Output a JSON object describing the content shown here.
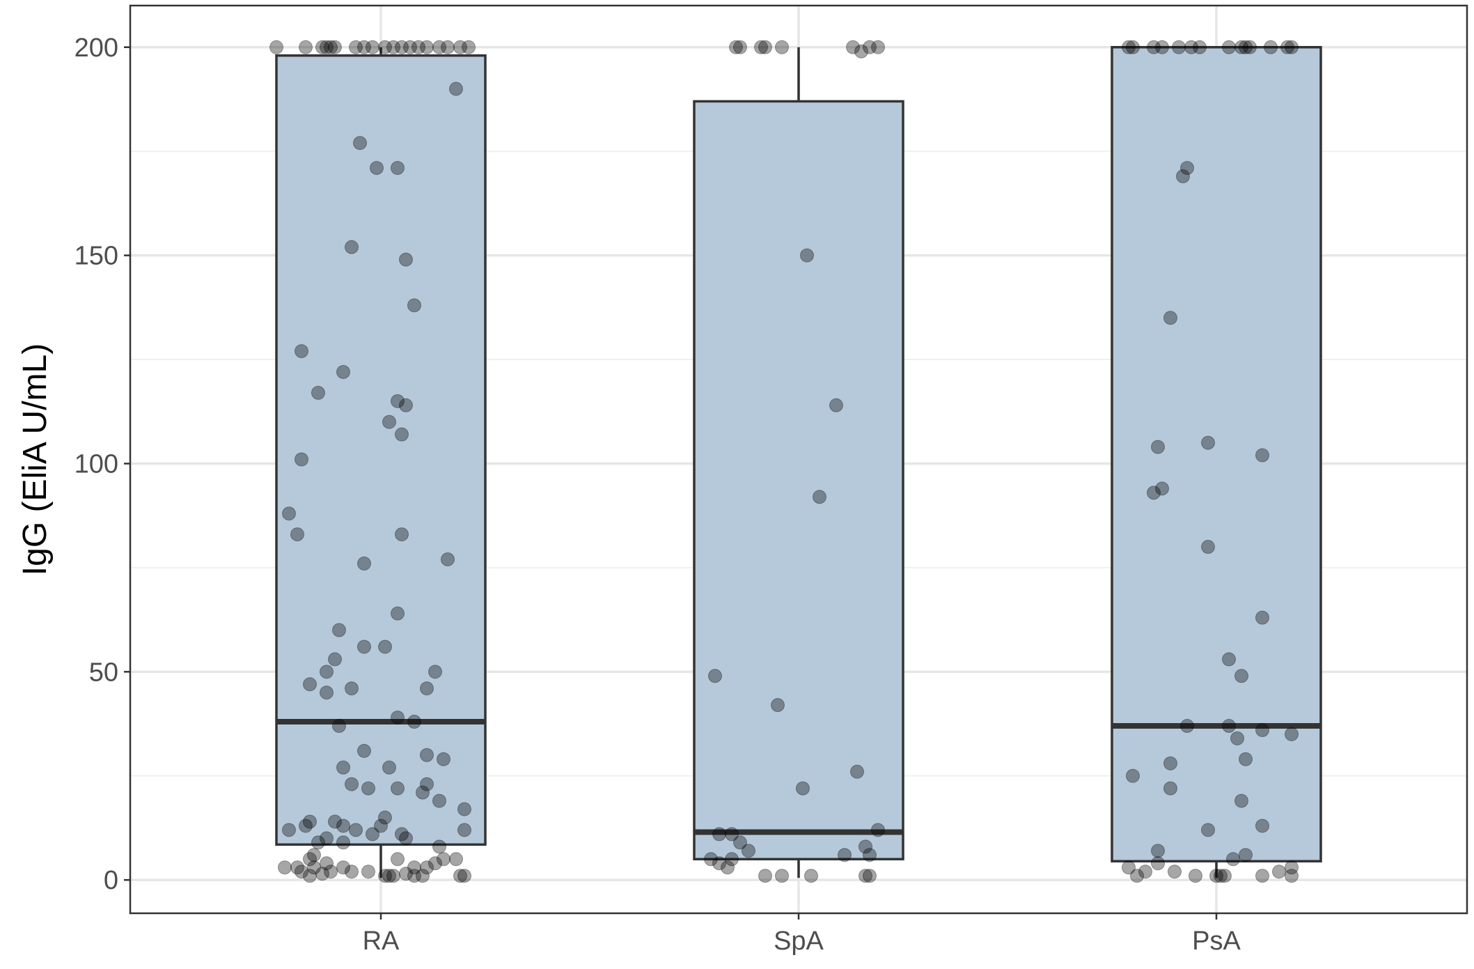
{
  "chart_data": {
    "type": "box",
    "ylabel": "IgG (EliA U/mL)",
    "ylim": [
      -8,
      210
    ],
    "y_ticks": [
      0,
      50,
      100,
      150,
      200
    ],
    "y_tick_labels": [
      "0",
      "50",
      "100",
      "150",
      "200"
    ],
    "categories": [
      "RA",
      "SpA",
      "PsA"
    ],
    "grid": true,
    "box_color": "#b6c9da",
    "boxes": [
      {
        "category": "RA",
        "lower_whisker": 0.5,
        "q1": 8.5,
        "median": 38,
        "q3": 198,
        "upper_whisker": 200
      },
      {
        "category": "SpA",
        "lower_whisker": 0.5,
        "q1": 5,
        "median": 11.5,
        "q3": 187,
        "upper_whisker": 200
      },
      {
        "category": "PsA",
        "lower_whisker": 0.5,
        "q1": 4.5,
        "median": 37,
        "q3": 200,
        "upper_whisker": 200
      }
    ],
    "points": [
      {
        "category": "RA",
        "values": [
          {
            "jitter": -0.25,
            "y": 200
          },
          {
            "jitter": -0.18,
            "y": 200
          },
          {
            "jitter": -0.14,
            "y": 200
          },
          {
            "jitter": -0.13,
            "y": 200
          },
          {
            "jitter": -0.12,
            "y": 200
          },
          {
            "jitter": -0.11,
            "y": 200
          },
          {
            "jitter": -0.06,
            "y": 200
          },
          {
            "jitter": -0.04,
            "y": 200
          },
          {
            "jitter": -0.02,
            "y": 200
          },
          {
            "jitter": 0.01,
            "y": 200
          },
          {
            "jitter": 0.03,
            "y": 200
          },
          {
            "jitter": 0.05,
            "y": 200
          },
          {
            "jitter": 0.07,
            "y": 200
          },
          {
            "jitter": 0.09,
            "y": 200
          },
          {
            "jitter": 0.11,
            "y": 200
          },
          {
            "jitter": 0.14,
            "y": 200
          },
          {
            "jitter": 0.16,
            "y": 200
          },
          {
            "jitter": 0.19,
            "y": 200
          },
          {
            "jitter": 0.21,
            "y": 200
          },
          {
            "jitter": 0.18,
            "y": 190
          },
          {
            "jitter": -0.05,
            "y": 177
          },
          {
            "jitter": -0.01,
            "y": 171
          },
          {
            "jitter": 0.04,
            "y": 171
          },
          {
            "jitter": -0.07,
            "y": 152
          },
          {
            "jitter": 0.06,
            "y": 149
          },
          {
            "jitter": 0.08,
            "y": 138
          },
          {
            "jitter": -0.19,
            "y": 127
          },
          {
            "jitter": -0.09,
            "y": 122
          },
          {
            "jitter": -0.15,
            "y": 117
          },
          {
            "jitter": 0.04,
            "y": 115
          },
          {
            "jitter": 0.06,
            "y": 114
          },
          {
            "jitter": 0.02,
            "y": 110
          },
          {
            "jitter": 0.05,
            "y": 107
          },
          {
            "jitter": -0.19,
            "y": 101
          },
          {
            "jitter": -0.22,
            "y": 88
          },
          {
            "jitter": -0.2,
            "y": 83
          },
          {
            "jitter": 0.05,
            "y": 83
          },
          {
            "jitter": 0.16,
            "y": 77
          },
          {
            "jitter": -0.04,
            "y": 76
          },
          {
            "jitter": 0.04,
            "y": 64
          },
          {
            "jitter": -0.1,
            "y": 60
          },
          {
            "jitter": -0.04,
            "y": 56
          },
          {
            "jitter": 0.01,
            "y": 56
          },
          {
            "jitter": -0.11,
            "y": 53
          },
          {
            "jitter": -0.13,
            "y": 50
          },
          {
            "jitter": 0.13,
            "y": 50
          },
          {
            "jitter": -0.17,
            "y": 47
          },
          {
            "jitter": -0.13,
            "y": 45
          },
          {
            "jitter": -0.07,
            "y": 46
          },
          {
            "jitter": 0.11,
            "y": 46
          },
          {
            "jitter": 0.04,
            "y": 39
          },
          {
            "jitter": 0.08,
            "y": 38
          },
          {
            "jitter": -0.1,
            "y": 37
          },
          {
            "jitter": -0.04,
            "y": 31
          },
          {
            "jitter": 0.11,
            "y": 30
          },
          {
            "jitter": 0.15,
            "y": 29
          },
          {
            "jitter": -0.09,
            "y": 27
          },
          {
            "jitter": 0.02,
            "y": 27
          },
          {
            "jitter": -0.07,
            "y": 23
          },
          {
            "jitter": -0.03,
            "y": 22
          },
          {
            "jitter": 0.04,
            "y": 22
          },
          {
            "jitter": 0.11,
            "y": 23
          },
          {
            "jitter": 0.1,
            "y": 21
          },
          {
            "jitter": 0.14,
            "y": 19
          },
          {
            "jitter": 0.2,
            "y": 17
          },
          {
            "jitter": -0.17,
            "y": 14
          },
          {
            "jitter": -0.11,
            "y": 14
          },
          {
            "jitter": 0.01,
            "y": 15
          },
          {
            "jitter": -0.09,
            "y": 13
          },
          {
            "jitter": -0.06,
            "y": 12
          },
          {
            "jitter": -0.02,
            "y": 11
          },
          {
            "jitter": 0.0,
            "y": 13
          },
          {
            "jitter": -0.22,
            "y": 12
          },
          {
            "jitter": -0.18,
            "y": 13
          },
          {
            "jitter": 0.05,
            "y": 11
          },
          {
            "jitter": 0.06,
            "y": 10
          },
          {
            "jitter": 0.2,
            "y": 12
          },
          {
            "jitter": -0.13,
            "y": 10
          },
          {
            "jitter": -0.09,
            "y": 9
          },
          {
            "jitter": -0.15,
            "y": 9
          },
          {
            "jitter": 0.14,
            "y": 8
          },
          {
            "jitter": -0.16,
            "y": 6
          },
          {
            "jitter": -0.17,
            "y": 5
          },
          {
            "jitter": -0.13,
            "y": 4
          },
          {
            "jitter": 0.04,
            "y": 5
          },
          {
            "jitter": 0.13,
            "y": 4
          },
          {
            "jitter": 0.15,
            "y": 5
          },
          {
            "jitter": 0.18,
            "y": 5
          },
          {
            "jitter": -0.2,
            "y": 3
          },
          {
            "jitter": -0.19,
            "y": 2
          },
          {
            "jitter": -0.16,
            "y": 3
          },
          {
            "jitter": -0.09,
            "y": 3
          },
          {
            "jitter": -0.07,
            "y": 2
          },
          {
            "jitter": 0.08,
            "y": 3
          },
          {
            "jitter": 0.11,
            "y": 3
          },
          {
            "jitter": -0.03,
            "y": 2
          },
          {
            "jitter": -0.23,
            "y": 3
          },
          {
            "jitter": -0.17,
            "y": 1
          },
          {
            "jitter": -0.14,
            "y": 1.5
          },
          {
            "jitter": -0.12,
            "y": 2
          },
          {
            "jitter": 0.01,
            "y": 1
          },
          {
            "jitter": 0.02,
            "y": 1
          },
          {
            "jitter": 0.03,
            "y": 1
          },
          {
            "jitter": 0.06,
            "y": 1.5
          },
          {
            "jitter": 0.08,
            "y": 1
          },
          {
            "jitter": 0.1,
            "y": 1
          },
          {
            "jitter": 0.19,
            "y": 1
          },
          {
            "jitter": 0.2,
            "y": 1
          }
        ]
      },
      {
        "category": "SpA",
        "values": [
          {
            "jitter": -0.15,
            "y": 200
          },
          {
            "jitter": -0.14,
            "y": 200
          },
          {
            "jitter": -0.09,
            "y": 200
          },
          {
            "jitter": -0.08,
            "y": 200
          },
          {
            "jitter": -0.04,
            "y": 200
          },
          {
            "jitter": 0.13,
            "y": 200
          },
          {
            "jitter": 0.15,
            "y": 199
          },
          {
            "jitter": 0.17,
            "y": 200
          },
          {
            "jitter": 0.19,
            "y": 200
          },
          {
            "jitter": 0.02,
            "y": 150
          },
          {
            "jitter": 0.09,
            "y": 114
          },
          {
            "jitter": 0.05,
            "y": 92
          },
          {
            "jitter": -0.2,
            "y": 49
          },
          {
            "jitter": -0.05,
            "y": 42
          },
          {
            "jitter": 0.14,
            "y": 26
          },
          {
            "jitter": 0.01,
            "y": 22
          },
          {
            "jitter": 0.19,
            "y": 12
          },
          {
            "jitter": -0.19,
            "y": 11
          },
          {
            "jitter": -0.16,
            "y": 11
          },
          {
            "jitter": -0.14,
            "y": 9
          },
          {
            "jitter": -0.12,
            "y": 7
          },
          {
            "jitter": 0.16,
            "y": 8
          },
          {
            "jitter": 0.17,
            "y": 6
          },
          {
            "jitter": 0.11,
            "y": 6
          },
          {
            "jitter": -0.21,
            "y": 5
          },
          {
            "jitter": -0.16,
            "y": 5
          },
          {
            "jitter": -0.19,
            "y": 4
          },
          {
            "jitter": -0.17,
            "y": 3
          },
          {
            "jitter": -0.08,
            "y": 1
          },
          {
            "jitter": -0.04,
            "y": 1
          },
          {
            "jitter": 0.03,
            "y": 1
          },
          {
            "jitter": 0.16,
            "y": 1
          },
          {
            "jitter": 0.17,
            "y": 1
          }
        ]
      },
      {
        "category": "PsA",
        "values": [
          {
            "jitter": -0.21,
            "y": 200
          },
          {
            "jitter": -0.2,
            "y": 200
          },
          {
            "jitter": -0.15,
            "y": 200
          },
          {
            "jitter": -0.13,
            "y": 200
          },
          {
            "jitter": -0.09,
            "y": 200
          },
          {
            "jitter": -0.06,
            "y": 200
          },
          {
            "jitter": -0.04,
            "y": 200
          },
          {
            "jitter": 0.03,
            "y": 200
          },
          {
            "jitter": 0.06,
            "y": 200
          },
          {
            "jitter": 0.07,
            "y": 200
          },
          {
            "jitter": 0.08,
            "y": 200
          },
          {
            "jitter": 0.13,
            "y": 200
          },
          {
            "jitter": 0.17,
            "y": 200
          },
          {
            "jitter": 0.18,
            "y": 200
          },
          {
            "jitter": -0.07,
            "y": 171
          },
          {
            "jitter": -0.08,
            "y": 169
          },
          {
            "jitter": -0.11,
            "y": 135
          },
          {
            "jitter": -0.14,
            "y": 104
          },
          {
            "jitter": -0.02,
            "y": 105
          },
          {
            "jitter": 0.11,
            "y": 102
          },
          {
            "jitter": -0.13,
            "y": 94
          },
          {
            "jitter": -0.15,
            "y": 93
          },
          {
            "jitter": -0.02,
            "y": 80
          },
          {
            "jitter": 0.11,
            "y": 63
          },
          {
            "jitter": 0.03,
            "y": 53
          },
          {
            "jitter": 0.06,
            "y": 49
          },
          {
            "jitter": -0.07,
            "y": 37
          },
          {
            "jitter": 0.03,
            "y": 37
          },
          {
            "jitter": 0.11,
            "y": 36
          },
          {
            "jitter": 0.05,
            "y": 34
          },
          {
            "jitter": 0.18,
            "y": 35
          },
          {
            "jitter": 0.07,
            "y": 29
          },
          {
            "jitter": -0.11,
            "y": 28
          },
          {
            "jitter": -0.2,
            "y": 25
          },
          {
            "jitter": -0.11,
            "y": 22
          },
          {
            "jitter": 0.06,
            "y": 19
          },
          {
            "jitter": 0.11,
            "y": 13
          },
          {
            "jitter": -0.02,
            "y": 12
          },
          {
            "jitter": -0.14,
            "y": 7
          },
          {
            "jitter": 0.07,
            "y": 6
          },
          {
            "jitter": 0.04,
            "y": 5
          },
          {
            "jitter": -0.14,
            "y": 4
          },
          {
            "jitter": -0.21,
            "y": 3
          },
          {
            "jitter": -0.17,
            "y": 2
          },
          {
            "jitter": -0.1,
            "y": 2
          },
          {
            "jitter": -0.05,
            "y": 1
          },
          {
            "jitter": 0.15,
            "y": 2
          },
          {
            "jitter": 0.18,
            "y": 3
          },
          {
            "jitter": -0.19,
            "y": 1
          },
          {
            "jitter": 0.0,
            "y": 1
          },
          {
            "jitter": 0.01,
            "y": 1
          },
          {
            "jitter": 0.02,
            "y": 1
          },
          {
            "jitter": 0.11,
            "y": 1
          },
          {
            "jitter": 0.18,
            "y": 1
          }
        ]
      }
    ]
  }
}
